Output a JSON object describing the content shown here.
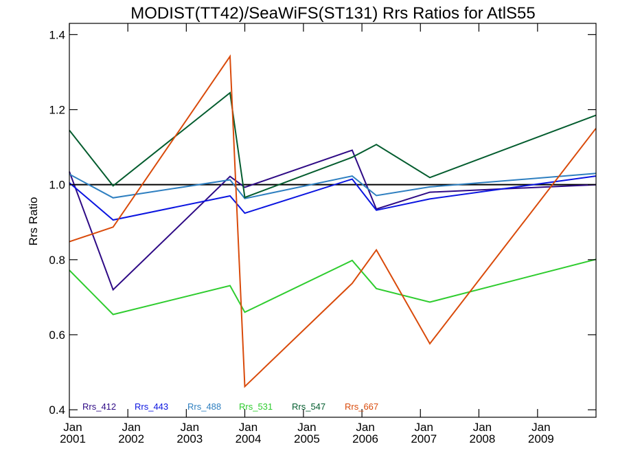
{
  "chart_data": {
    "type": "line",
    "title": "MODIST(TT42)/SeaWiFS(ST131)  Rrs Ratios for AtlS55",
    "xlabel": "",
    "ylabel": "Rrs Ratio",
    "xlim": [
      "2001-01-01",
      "2010-01-01"
    ],
    "ylim": [
      0.38,
      1.43
    ],
    "y_ticks": [
      0.4,
      0.6,
      0.8,
      1.0,
      1.2,
      1.4
    ],
    "y_tick_labels": [
      "0.4",
      "0.6",
      "0.8",
      "1.0",
      "1.2",
      "1.4"
    ],
    "x_ticks": [
      {
        "date": "2001-01-01",
        "line1": "Jan",
        "line2": "2001"
      },
      {
        "date": "2002-01-01",
        "line1": "Jan",
        "line2": "2002"
      },
      {
        "date": "2003-01-01",
        "line1": "Jan",
        "line2": "2003"
      },
      {
        "date": "2004-01-01",
        "line1": "Jan",
        "line2": "2004"
      },
      {
        "date": "2005-01-01",
        "line1": "Jan",
        "line2": "2005"
      },
      {
        "date": "2006-01-01",
        "line1": "Jan",
        "line2": "2006"
      },
      {
        "date": "2007-01-01",
        "line1": "Jan",
        "line2": "2007"
      },
      {
        "date": "2008-01-01",
        "line1": "Jan",
        "line2": "2008"
      },
      {
        "date": "2009-01-01",
        "line1": "Jan",
        "line2": "2009"
      }
    ],
    "reference_line": 1.0,
    "legend_position": "bottom-left",
    "x": [
      "2001-01-01",
      "2001-10-01",
      "2003-10-01",
      "2004-01-01",
      "2005-11-01",
      "2006-04-01",
      "2007-03-01",
      "2009-12-31"
    ],
    "series": [
      {
        "name": "Rrs_412",
        "color": "#2e0a85",
        "values": [
          1.035,
          0.72,
          1.022,
          0.993,
          1.092,
          0.935,
          0.98,
          1.0
        ]
      },
      {
        "name": "Rrs_443",
        "color": "#0a14e0",
        "values": [
          1.005,
          0.906,
          0.97,
          0.924,
          1.015,
          0.932,
          0.962,
          1.023
        ]
      },
      {
        "name": "Rrs_488",
        "color": "#2e7fc0",
        "values": [
          1.028,
          0.965,
          1.013,
          0.963,
          1.023,
          0.971,
          0.994,
          1.03
        ]
      },
      {
        "name": "Rrs_531",
        "color": "#2ecc2e",
        "values": [
          0.772,
          0.654,
          0.731,
          0.66,
          0.798,
          0.723,
          0.687,
          0.801
        ]
      },
      {
        "name": "Rrs_547",
        "color": "#035c2e",
        "values": [
          1.145,
          0.997,
          1.245,
          0.966,
          1.073,
          1.107,
          1.019,
          1.185
        ]
      },
      {
        "name": "Rrs_667",
        "color": "#d94a0a",
        "values": [
          0.848,
          0.887,
          1.342,
          0.462,
          0.737,
          0.826,
          0.576,
          1.15
        ]
      }
    ]
  }
}
